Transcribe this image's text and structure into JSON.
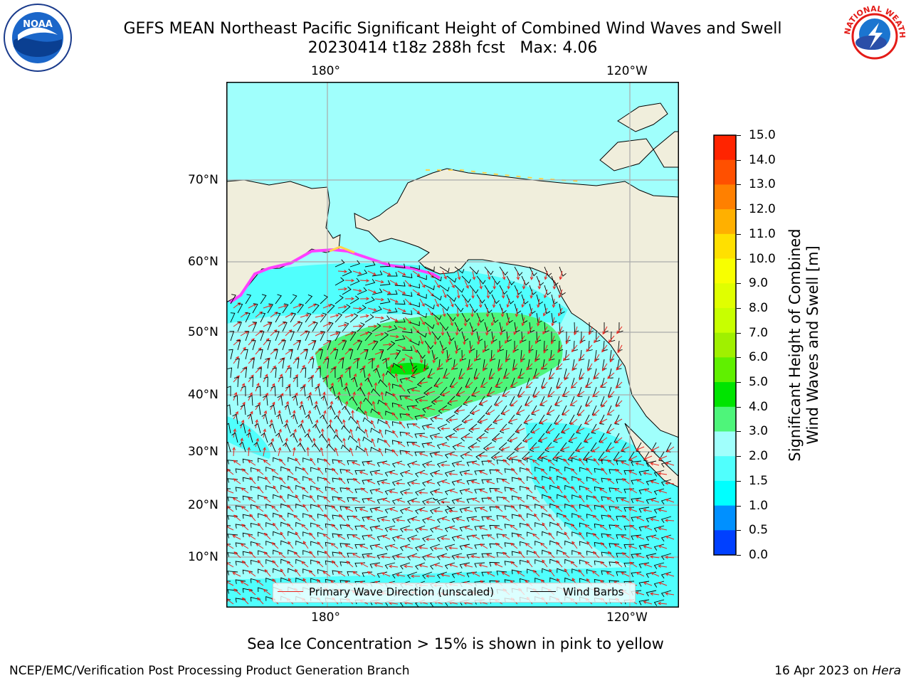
{
  "title": {
    "line1": "GEFS MEAN Northeast Pacific Significant Height of Combined Wind Waves and Swell",
    "line2": "20230414 t18z 288h fcst   Max: 4.06"
  },
  "map": {
    "lon_ticks_top": [
      "180°",
      "120°W"
    ],
    "lon_ticks_bottom": [
      "180°",
      "120°W"
    ],
    "lat_ticks": [
      "70°N",
      "60°N",
      "50°N",
      "40°N",
      "30°N",
      "20°N",
      "10°N"
    ],
    "colors": {
      "land": "#f0eedc",
      "sea_low": "#a0fffc",
      "sea_mid": "#50fffd",
      "sea_cyan": "#00ffff",
      "waves_3_4": "#4ef57a",
      "waves_4_5": "#00e40a",
      "ice_pink": "#ff40ff",
      "ice_yellow": "#ffd24a"
    }
  },
  "legend": {
    "wave_label": "Primary Wave Direction (unscaled)",
    "wind_label": "Wind Barbs",
    "wave_color": "#e8251e",
    "wind_color": "#000000"
  },
  "colorbar": {
    "title_line1": "Significant Height of Combined",
    "title_line2": "Wind Waves and Swell [m]",
    "ticks": [
      "15.0",
      "14.0",
      "13.0",
      "12.0",
      "11.0",
      "10.0",
      "9.0",
      "8.0",
      "7.0",
      "6.0",
      "5.0",
      "4.0",
      "3.0",
      "2.0",
      "1.5",
      "1.0",
      "0.5",
      "0.0"
    ],
    "colors": [
      "#ff0000",
      "#ff2400",
      "#ff5000",
      "#ff8000",
      "#ffb000",
      "#ffe000",
      "#f8ff00",
      "#e0ff00",
      "#c8ff00",
      "#a0f000",
      "#60f000",
      "#00e400",
      "#4ef57a",
      "#a0fffc",
      "#50fffd",
      "#00ffff",
      "#0090ff",
      "#0040ff",
      "#0000ff"
    ]
  },
  "caption": "Sea Ice Concentration > 15% is shown in pink to yellow",
  "footer": {
    "left": "NCEP/EMC/Verification Post Processing Product Generation Branch",
    "right_prefix": "16 Apr 2023 on ",
    "right_host": "Hera"
  },
  "logos": {
    "left": "NOAA",
    "right": "NATIONAL WEATHER SERVICE"
  }
}
